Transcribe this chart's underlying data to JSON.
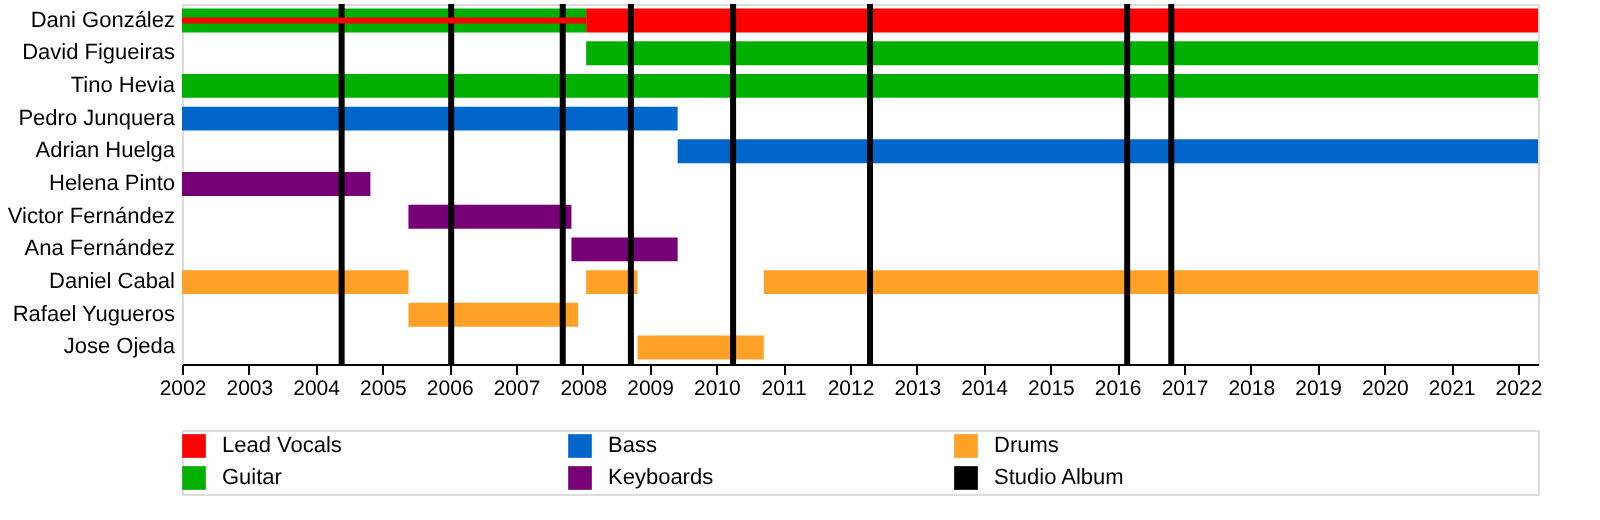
{
  "chart_data": {
    "type": "bar",
    "orientation": "horizontal",
    "categories": [
      "Dani González",
      "David Figueiras",
      "Tino Hevia",
      "Pedro Junquera",
      "Adrian Huelga",
      "Helena Pinto",
      "Victor Fernández",
      "Ana Fernández",
      "Daniel Cabal",
      "Rafael Yugueros",
      "Jose Ojeda"
    ],
    "series": [
      {
        "name": "Lead Vocals",
        "color": "#ff0000",
        "base": [
          2008.05,
          null,
          null,
          null,
          null,
          null,
          null,
          null,
          null,
          null,
          null
        ],
        "values": [
          14.25,
          null,
          null,
          null,
          null,
          null,
          null,
          null,
          null,
          null,
          null
        ]
      },
      {
        "name": "Guitar",
        "color": "#00b000",
        "base": [
          2002,
          2008.05,
          2002,
          null,
          null,
          null,
          null,
          null,
          null,
          null,
          null
        ],
        "values": [
          6.05,
          14.25,
          20.3,
          null,
          null,
          null,
          null,
          null,
          null,
          null,
          null
        ]
      },
      {
        "color": "#ff0000",
        "base": [
          2002,
          null,
          null,
          null,
          null,
          null,
          null,
          null,
          null,
          null,
          null
        ],
        "values": [
          6.05,
          null,
          null,
          null,
          null,
          null,
          null,
          null,
          null,
          null,
          null
        ]
      },
      {
        "name": "Bass",
        "color": "#0066cc",
        "base": [
          null,
          null,
          null,
          2002,
          2009.42,
          null,
          null,
          null,
          null,
          null,
          null
        ],
        "values": [
          null,
          null,
          null,
          7.42,
          12.88,
          null,
          null,
          null,
          null,
          null,
          null
        ]
      },
      {
        "name": "Keyboards",
        "color": "#770077",
        "base": [
          null,
          null,
          null,
          null,
          null,
          2002,
          2005.39,
          2007.83,
          null,
          null,
          null
        ],
        "values": [
          null,
          null,
          null,
          null,
          null,
          2.82,
          2.44,
          1.59,
          null,
          null,
          null
        ]
      },
      {
        "name": "Drums",
        "color": "#ffa027",
        "base": [
          null,
          null,
          null,
          null,
          null,
          null,
          null,
          null,
          2002,
          2005.39,
          2008.82
        ],
        "values": [
          null,
          null,
          null,
          null,
          null,
          null,
          null,
          null,
          3.39,
          2.54,
          1.89
        ]
      },
      {
        "color": "#ffa027",
        "base": [
          null,
          null,
          null,
          null,
          null,
          null,
          null,
          null,
          2008.05,
          null,
          null
        ],
        "values": [
          null,
          null,
          null,
          null,
          null,
          null,
          null,
          null,
          0.77,
          null,
          null
        ]
      },
      {
        "color": "#ffa027",
        "base": [
          null,
          null,
          null,
          null,
          null,
          null,
          null,
          null,
          2010.71,
          null,
          null
        ],
        "values": [
          null,
          null,
          null,
          null,
          null,
          null,
          null,
          null,
          11.59,
          null,
          null
        ]
      }
    ],
    "ref_lines": [
      {
        "axis": "x",
        "value": 2004.39,
        "label": "Studio Album",
        "color": "#000000"
      },
      {
        "axis": "x",
        "value": 2006.03,
        "color": "#000000"
      },
      {
        "axis": "x",
        "value": 2007.7,
        "color": "#000000"
      },
      {
        "axis": "x",
        "value": 2008.72,
        "color": "#000000"
      },
      {
        "axis": "x",
        "value": 2010.25,
        "color": "#000000"
      },
      {
        "axis": "x",
        "value": 2012.3,
        "color": "#000000"
      },
      {
        "axis": "x",
        "value": 2016.15,
        "color": "#000000"
      },
      {
        "axis": "x",
        "value": 2016.81,
        "color": "#000000"
      }
    ],
    "xlim": [
      2002,
      2022.3
    ],
    "xticks": [
      2002,
      2003,
      2004,
      2005,
      2006,
      2007,
      2008,
      2009,
      2010,
      2011,
      2012,
      2013,
      2014,
      2015,
      2016,
      2017,
      2018,
      2019,
      2020,
      2021,
      2022
    ],
    "grid": false,
    "legend": "bottom"
  }
}
